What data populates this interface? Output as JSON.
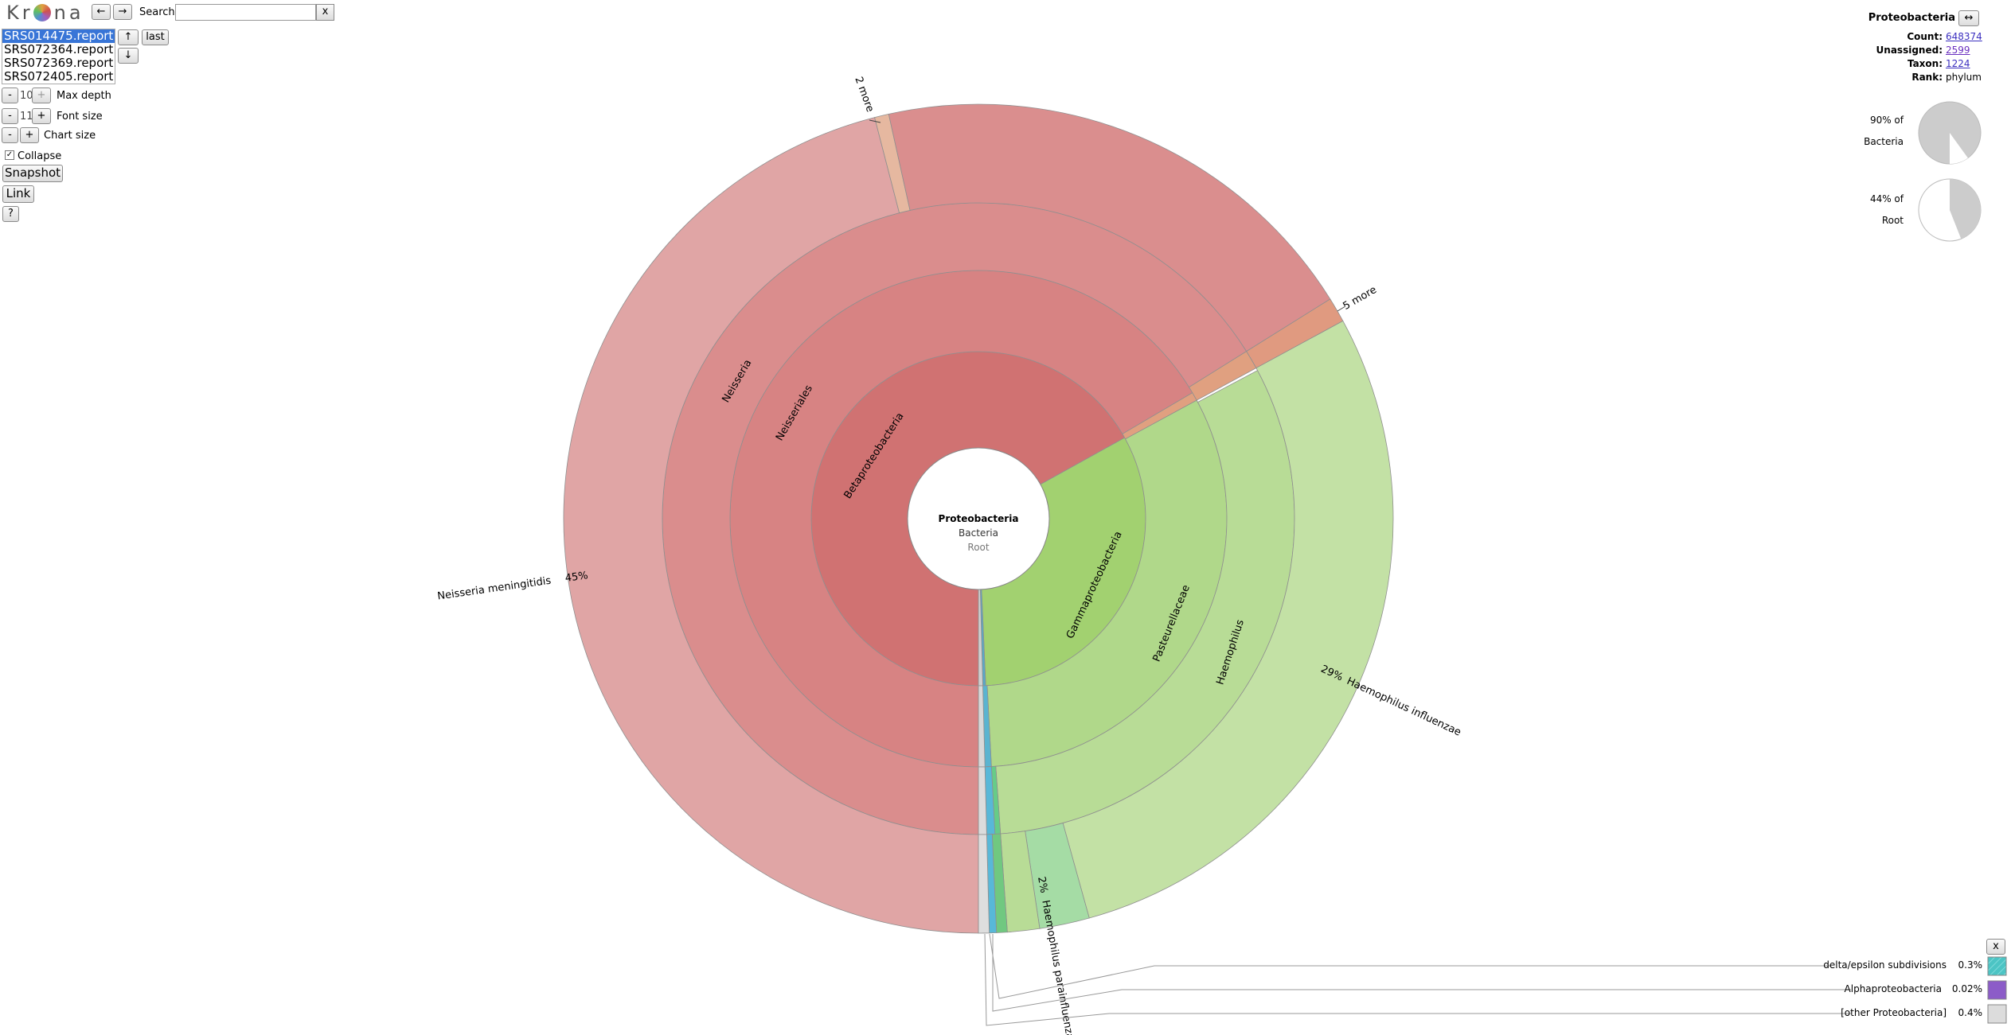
{
  "logo": {
    "left": "Kr",
    "right": "na"
  },
  "nav": {
    "back": "←",
    "forward": "→"
  },
  "search": {
    "label": "Search:",
    "clear": "x"
  },
  "datasets": {
    "items": [
      "SRS014475.report",
      "SRS072364.report",
      "SRS072369.report",
      "SRS072405.report"
    ],
    "up": "↑",
    "down": "↓",
    "last": "last"
  },
  "controls": {
    "max_depth": {
      "minus": "-",
      "value": "10",
      "plus": "+",
      "label": "Max depth"
    },
    "font_size": {
      "minus": "-",
      "value": "11",
      "plus": "+",
      "label": "Font size"
    },
    "chart_size": {
      "minus": "-",
      "plus": "+",
      "label": "Chart size"
    },
    "collapse": "Collapse",
    "snapshot": "Snapshot",
    "link": "Link",
    "help": "?"
  },
  "details": {
    "name": "Proteobacteria",
    "toggle": "↔",
    "rows": [
      {
        "label": "Count:",
        "value": "648374"
      },
      {
        "label": "Unassigned:",
        "value": "2599"
      },
      {
        "label": "Taxon:",
        "value": "1224"
      },
      {
        "label": "Rank:",
        "value": "phylum"
      }
    ]
  },
  "pies": [
    {
      "label": "90% of",
      "of": "Bacteria"
    },
    {
      "label": "44% of",
      "of": "Root"
    }
  ],
  "center": {
    "name": "Proteobacteria",
    "parent": "Bacteria",
    "root": "Root"
  },
  "labels": {
    "betaproteobacteria": "Betaproteobacteria",
    "neisseriales": "Neisseriales",
    "neisseria": "Neisseria",
    "neisseria_meningitidis": {
      "name": "Neisseria meningitidis",
      "percent": "45%"
    },
    "gammaproteobacteria": "Gammaproteobacteria",
    "pasteurellaceae": "Pasteurellaceae",
    "haemophilus": "Haemophilus",
    "haemophilus_influenzae": {
      "name": "Haemophilus influenzae",
      "percent": "29%"
    },
    "haemophilus_parainfluenzae": {
      "name": "Haemophilus parainfluenzae",
      "percent": "2%"
    },
    "more_top": "2 more",
    "more_right": "5 more"
  },
  "key": {
    "close": "x",
    "rows": [
      {
        "name": "delta/epsilon subdivisions",
        "percent": "0.3%"
      },
      {
        "name": "Alphaproteobacteria",
        "percent": "0.02%"
      },
      {
        "name": "[other Proteobacteria]",
        "percent": "0.4%"
      }
    ]
  }
}
